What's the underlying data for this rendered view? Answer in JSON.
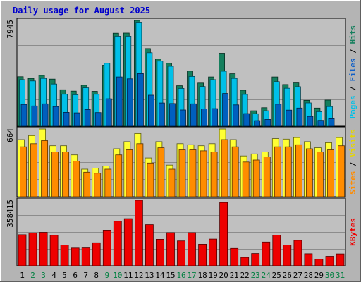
{
  "chart_data": {
    "type": "bar",
    "title": "Daily usage for August 2025",
    "categories": [
      "1",
      "2",
      "3",
      "4",
      "5",
      "6",
      "7",
      "8",
      "9",
      "10",
      "11",
      "12",
      "13",
      "14",
      "15",
      "16",
      "17",
      "18",
      "19",
      "20",
      "21",
      "22",
      "23",
      "24",
      "25",
      "26",
      "27",
      "28",
      "29",
      "30",
      "31"
    ],
    "weekend_days": [
      "2",
      "3",
      "9",
      "10",
      "16",
      "17",
      "23",
      "24",
      "30",
      "31"
    ],
    "panels": [
      {
        "id": "hits_files_pages",
        "max_label": "7945",
        "ymax": 7945,
        "axis_title_parts": [
          "Pages",
          "Files",
          "Hits"
        ],
        "series": [
          {
            "name": "Hits",
            "values": [
              3720,
              3590,
              3820,
              3540,
              2740,
              2640,
              3080,
              2620,
              4580,
              6980,
              6990,
              7945,
              5830,
              5040,
              4730,
              3040,
              4140,
              3240,
              3700,
              5480,
              3940,
              2700,
              1160,
              1390,
              3700,
              3130,
              3250,
              1940,
              1360,
              1960,
              null
            ]
          },
          {
            "name": "Files",
            "values": [
              3500,
              3400,
              3590,
              3170,
              2400,
              2360,
              2880,
              2400,
              4730,
              6760,
              6760,
              7810,
              5520,
              4890,
              4500,
              2840,
              3740,
              2980,
              3500,
              4130,
              3590,
              2390,
              940,
              1160,
              3350,
              2850,
              2970,
              1750,
              1090,
              1470,
              null
            ]
          },
          {
            "name": "Pages",
            "values": [
              1630,
              1520,
              1680,
              1470,
              1040,
              1000,
              1250,
              1020,
              2060,
              3700,
              3560,
              3950,
              2330,
              1740,
              1700,
              1220,
              1680,
              1300,
              1320,
              2460,
              1600,
              950,
              420,
              510,
              1650,
              1210,
              1360,
              730,
              440,
              560,
              null
            ]
          }
        ],
        "colors": {
          "Hits": "#157f5d",
          "Files": "#00c0e8",
          "Pages": "#005fbf"
        },
        "axis_colors": {
          "Pages": "#00c0e8",
          "Files": "#1060c8",
          "Hits": "#157f5d"
        }
      },
      {
        "id": "visits_sites",
        "max_label": "664",
        "ymax": 664,
        "axis_title_parts": [
          "Sites",
          "Visits"
        ],
        "series": [
          {
            "name": "Visits",
            "values": [
              560,
              600,
              664,
              500,
              500,
              410,
              270,
              280,
              300,
              470,
              540,
              620,
              380,
              540,
              310,
              520,
              510,
              500,
              520,
              664,
              560,
              400,
              420,
              440,
              570,
              565,
              580,
              540,
              480,
              530,
              580
            ]
          },
          {
            "name": "Sites",
            "values": [
              490,
              520,
              550,
              440,
              440,
              350,
              240,
              230,
              270,
              410,
              460,
              520,
              330,
              480,
              270,
              460,
              460,
              450,
              440,
              560,
              490,
              340,
              360,
              390,
              490,
              490,
              510,
              470,
              440,
              460,
              500
            ]
          }
        ],
        "colors": {
          "Visits": "#ffff33",
          "Sites": "#ff8c00"
        },
        "axis_colors": {
          "Sites": "#ff8c00",
          "Visits": "#e6d600"
        }
      },
      {
        "id": "kbytes",
        "max_label": "358415",
        "ymax": 358415,
        "axis_title_parts": [
          "KBytes"
        ],
        "series": [
          {
            "name": "KBytes",
            "values": [
              170000,
              180000,
              183000,
              167000,
              114000,
              97000,
              98000,
              126000,
              195000,
              244000,
              258000,
              358415,
              225000,
              145000,
              181000,
              136000,
              181000,
              118000,
              146000,
              346000,
              95000,
              46000,
              67000,
              130000,
              168000,
              114000,
              139000,
              66000,
              36000,
              52000,
              65000
            ]
          }
        ],
        "colors": {
          "KBytes": "#ee0000"
        },
        "axis_colors": {
          "KBytes": "#ee0000"
        }
      }
    ],
    "text_colors": {
      "title": "#0000cc",
      "weekday": "#000000",
      "weekend": "#008040"
    },
    "grid": true,
    "legend": "right-vertical-axis-titles"
  }
}
